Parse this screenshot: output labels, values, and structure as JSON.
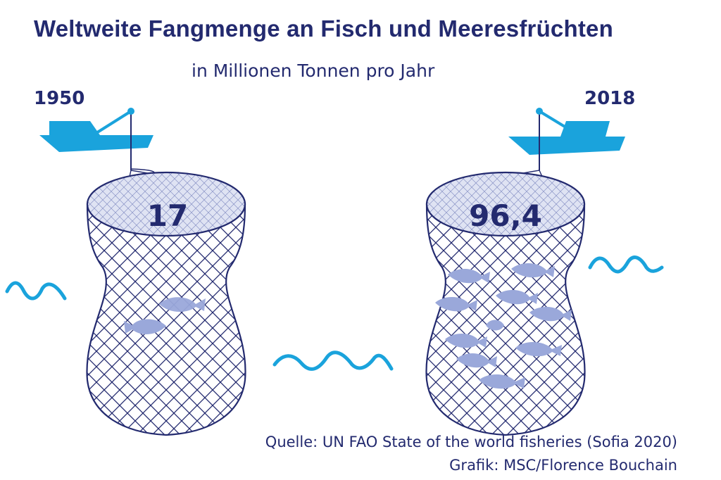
{
  "chart_data": {
    "type": "bar",
    "title": "Weltweite Fangmenge an Fisch und Meeresfrüchten",
    "subtitle": "in Millionen Tonnen pro Jahr",
    "categories": [
      "1950",
      "2018"
    ],
    "values": [
      17,
      96.4
    ],
    "value_labels": [
      "17",
      "96,4"
    ],
    "fish_icons": [
      2,
      10
    ]
  },
  "footer": {
    "source": "Quelle: UN FAO State of the world fisheries (Sofia 2020)",
    "credit": "Grafik: MSC/Florence Bouchain"
  },
  "colors": {
    "navy": "#232a6f",
    "boat": "#1aa3dc",
    "fish": "#9aa8da",
    "net_fill": "#dfe3f3"
  },
  "icons": [
    "boat-icon",
    "fishing-net-icon",
    "fish-icon",
    "wave-icon"
  ]
}
